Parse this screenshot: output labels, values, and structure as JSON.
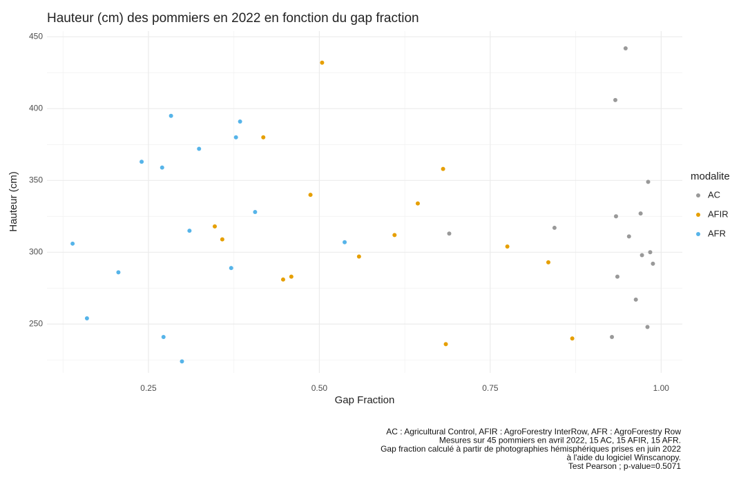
{
  "chart_data": {
    "type": "scatter",
    "title": "Hauteur (cm) des pommiers en 2022 en fonction du gap fraction",
    "x_label": "Gap Fraction",
    "y_label": "Hauteur (cm)",
    "legend_title": "modalite",
    "legend_position": "right",
    "caption": [
      "AC : Agricultural Control, AFIR : AgroForestry InterRow, AFR : AgroForestry Row",
      "Mesures sur 45 pommiers en avril 2022, 15 AC, 15 AFIR, 15 AFR.",
      "Gap fraction calculé à partir de photographies hémisphériques prises en juin 2022",
      "à l'aide du logiciel Winscanopy.",
      "Test Pearson ; p-value=0.5071"
    ],
    "xlim": [
      0.1015,
      1.031
    ],
    "ylim": [
      216,
      454
    ],
    "xticks": [
      {
        "value": 0.25,
        "label": "0.25"
      },
      {
        "value": 0.5,
        "label": "0.50"
      },
      {
        "value": 0.75,
        "label": "0.75"
      },
      {
        "value": 1,
        "label": "1.00"
      }
    ],
    "yticks": [
      250,
      300,
      350,
      400,
      450
    ],
    "xminor": [
      0.125,
      0.375,
      0.625,
      0.875
    ],
    "yminor": [
      225,
      275,
      325,
      375,
      425
    ],
    "grid": true,
    "series": [
      {
        "name": "AC",
        "color": "#999999",
        "x": [
          0.948,
          0.933,
          0.981,
          0.97,
          0.934,
          0.844,
          0.953,
          0.69,
          0.984,
          0.972,
          0.988,
          0.936,
          0.963,
          0.98,
          0.928
        ],
        "values": [
          442,
          406,
          349,
          327,
          325,
          317,
          311,
          313,
          300,
          298,
          292,
          283,
          267,
          248,
          241
        ]
      },
      {
        "name": "AFIR",
        "color": "#E69F00",
        "x": [
          0.504,
          0.418,
          0.681,
          0.487,
          0.644,
          0.347,
          0.358,
          0.61,
          0.775,
          0.558,
          0.835,
          0.459,
          0.447,
          0.685,
          0.87
        ],
        "values": [
          432,
          380,
          358,
          340,
          334,
          318,
          309,
          312,
          304,
          297,
          293,
          283,
          281,
          236,
          240
        ]
      },
      {
        "name": "AFR",
        "color": "#56B4E9",
        "x": [
          0.283,
          0.384,
          0.378,
          0.324,
          0.24,
          0.27,
          0.406,
          0.31,
          0.139,
          0.537,
          0.371,
          0.206,
          0.16,
          0.272,
          0.299
        ],
        "values": [
          395,
          391,
          380,
          372,
          363,
          359,
          328,
          315,
          306,
          307,
          289,
          286,
          254,
          241,
          224
        ]
      }
    ]
  }
}
